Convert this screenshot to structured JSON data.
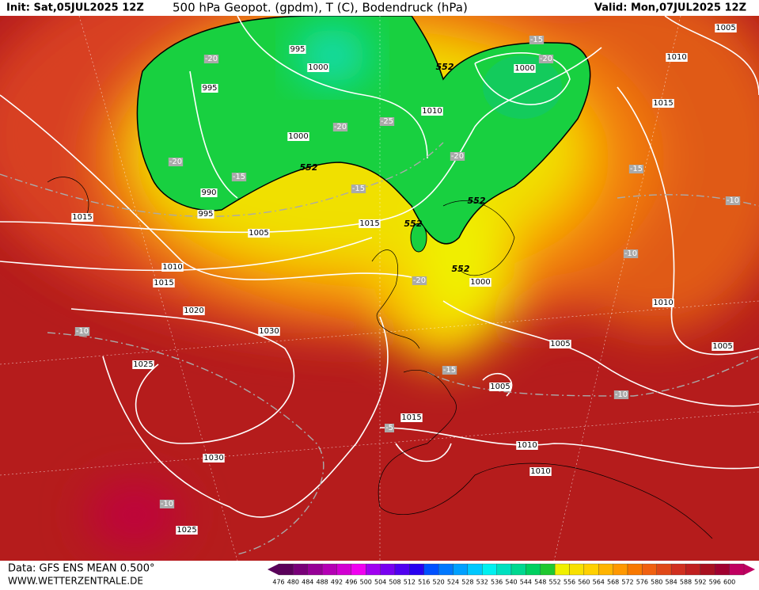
{
  "header": {
    "init": "Init: Sat,05JUL2025 12Z",
    "title": "500 hPa Geopot. (gpdm), T (C), Bodendruck (hPa)",
    "valid": "Valid: Mon,07JUL2025 12Z"
  },
  "map": {
    "isobar_labels": [
      "995",
      "1000",
      "995",
      "1000",
      "990",
      "995",
      "1005",
      "1010",
      "1015",
      "1015",
      "1020",
      "1030",
      "1025",
      "1030",
      "1025",
      "1015",
      "1010",
      "1000",
      "1005",
      "1010",
      "1015",
      "1000",
      "1010",
      "1005",
      "1005",
      "1005",
      "1015",
      "1010",
      "1010"
    ],
    "temperature_labels": [
      "-20",
      "-15",
      "-20",
      "-20",
      "-25",
      "-20",
      "-15",
      "-20",
      "-15",
      "-15",
      "-10",
      "-10",
      "-20",
      "-10",
      "-15",
      "-10",
      "-5",
      "-10"
    ],
    "geopotential_labels": [
      "552",
      "552",
      "552",
      "552",
      "552"
    ]
  },
  "footer": {
    "source": "Data: GFS ENS MEAN 0.500°",
    "site": "WWW.WETTERZENTRALE.DE"
  },
  "color_scale": {
    "labels": [
      476,
      480,
      484,
      488,
      492,
      496,
      500,
      504,
      508,
      512,
      516,
      520,
      524,
      528,
      532,
      536,
      540,
      544,
      548,
      552,
      556,
      560,
      564,
      568,
      572,
      576,
      580,
      584,
      588,
      592,
      596,
      600
    ],
    "colors": [
      "#5a005a",
      "#780078",
      "#960096",
      "#b400b4",
      "#d200d2",
      "#f000f0",
      "#a000f0",
      "#7800f0",
      "#5000f0",
      "#2800f0",
      "#0050ff",
      "#0078ff",
      "#00a0ff",
      "#00c8ff",
      "#00f0f0",
      "#00e0c0",
      "#00d890",
      "#00d060",
      "#20c830",
      "#f0f000",
      "#f8e000",
      "#ffd000",
      "#ffb400",
      "#ff9800",
      "#f87800",
      "#f06010",
      "#e04818",
      "#d03020",
      "#c02020",
      "#a81020",
      "#a00030",
      "#c00060"
    ]
  }
}
